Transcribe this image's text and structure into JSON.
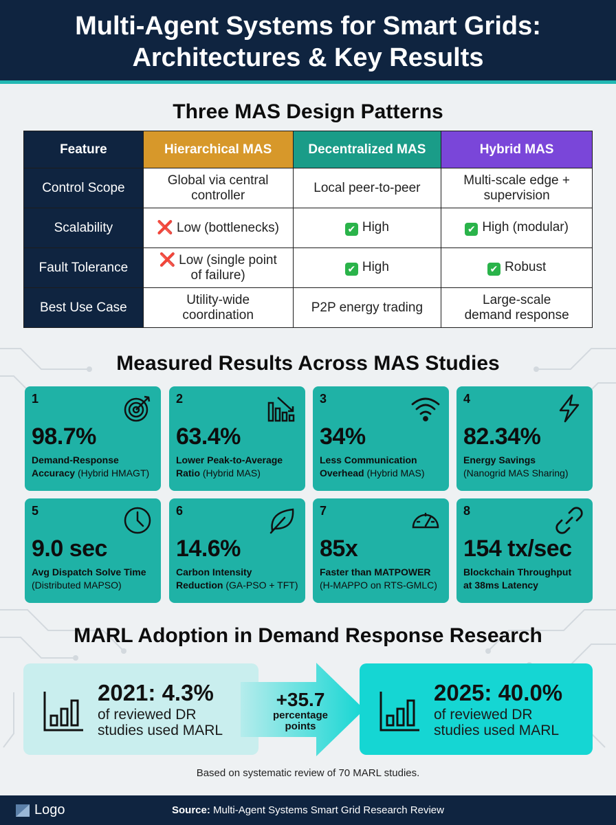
{
  "header": {
    "title_line1": "Multi-Agent Systems for Smart Grids:",
    "title_line2": "Architectures & Key Results"
  },
  "patterns": {
    "title": "Three MAS Design Patterns",
    "headers": [
      "Feature",
      "Hierarchical MAS",
      "Decentralized MAS",
      "Hybrid MAS"
    ],
    "header_colors": [
      "#0f2440",
      "#d7982a",
      "#1a9c88",
      "#7a46d9"
    ],
    "rows": [
      {
        "feature": "Control Scope",
        "hier_l1": "Global via central",
        "hier_l2": "controller",
        "dec": "Local peer-to-peer",
        "hyb_l1": "Multi-scale edge +",
        "hyb_l2": "supervision"
      },
      {
        "feature": "Scalability",
        "hier_mark": "❌",
        "hier": "Low (bottlenecks)",
        "dec_mark": "✔",
        "dec": "High",
        "hyb_mark": "✔",
        "hyb": "High (modular)"
      },
      {
        "feature": "Fault Tolerance",
        "hier_mark": "❌",
        "hier_l1": "Low (single point",
        "hier_l2": "of failure)",
        "dec_mark": "✔",
        "dec": "High",
        "hyb_mark": "✔",
        "hyb": "Robust"
      },
      {
        "feature": "Best Use Case",
        "hier_l1": "Utility-wide",
        "hier_l2": "coordination",
        "dec": "P2P energy trading",
        "hyb_l1": "Large-scale",
        "hyb_l2": "demand response"
      }
    ]
  },
  "results": {
    "title": "Measured Results Across MAS Studies",
    "cards": [
      {
        "num": "1",
        "value": "98.7%",
        "desc_bold": "Demand-Response",
        "desc_bold2": "Accuracy",
        "desc_rest": "(Hybrid HMAGT)",
        "icon": "target-icon"
      },
      {
        "num": "2",
        "value": "63.4%",
        "desc_bold": "Lower Peak-to-Average",
        "desc_bold2": "Ratio",
        "desc_rest": "(Hybrid MAS)",
        "icon": "bar-chart-down-icon"
      },
      {
        "num": "3",
        "value": "34%",
        "desc_bold": "Less Communication",
        "desc_bold2": "Overhead",
        "desc_rest": "(Hybrid MAS)",
        "icon": "wifi-icon"
      },
      {
        "num": "4",
        "value": "82.34%",
        "desc_bold": "Energy Savings",
        "desc_bold2": "",
        "desc_rest": "(Nanogrid MAS Sharing)",
        "icon": "lightning-icon"
      },
      {
        "num": "5",
        "value": "9.0 sec",
        "desc_bold": "Avg Dispatch Solve Time",
        "desc_bold2": "",
        "desc_rest": "(Distributed MAPSO)",
        "icon": "clock-icon"
      },
      {
        "num": "6",
        "value": "14.6%",
        "desc_bold": "Carbon Intensity",
        "desc_bold2": "Reduction",
        "desc_rest": "(GA-PSO + TFT)",
        "icon": "leaf-icon"
      },
      {
        "num": "7",
        "value": "85x",
        "desc_bold": "Faster than MATPOWER",
        "desc_bold2": "",
        "desc_rest": "(H-MAPPO on RTS-GMLC)",
        "icon": "speedometer-icon"
      },
      {
        "num": "8",
        "value": "154 tx/sec",
        "desc_bold": "Blockchain Throughput",
        "desc_bold2": "at 38ms Latency",
        "desc_rest": "",
        "icon": "chain-link-icon"
      }
    ]
  },
  "adoption": {
    "title": "MARL Adoption in Demand Response Research",
    "left_year": "2021: 4.3%",
    "left_sub1": "of reviewed DR",
    "left_sub2": "studies used MARL",
    "delta": "+35.7",
    "delta_unit1": "percentage",
    "delta_unit2": "points",
    "right_year": "2025: 40.0%",
    "right_sub1": "of reviewed DR",
    "right_sub2": "studies used MARL",
    "note": "Based on systematic review of 70 MARL studies."
  },
  "footer": {
    "logo": "Logo",
    "source_label": "Source:",
    "source_text": "Multi-Agent Systems Smart Grid Research Review"
  }
}
